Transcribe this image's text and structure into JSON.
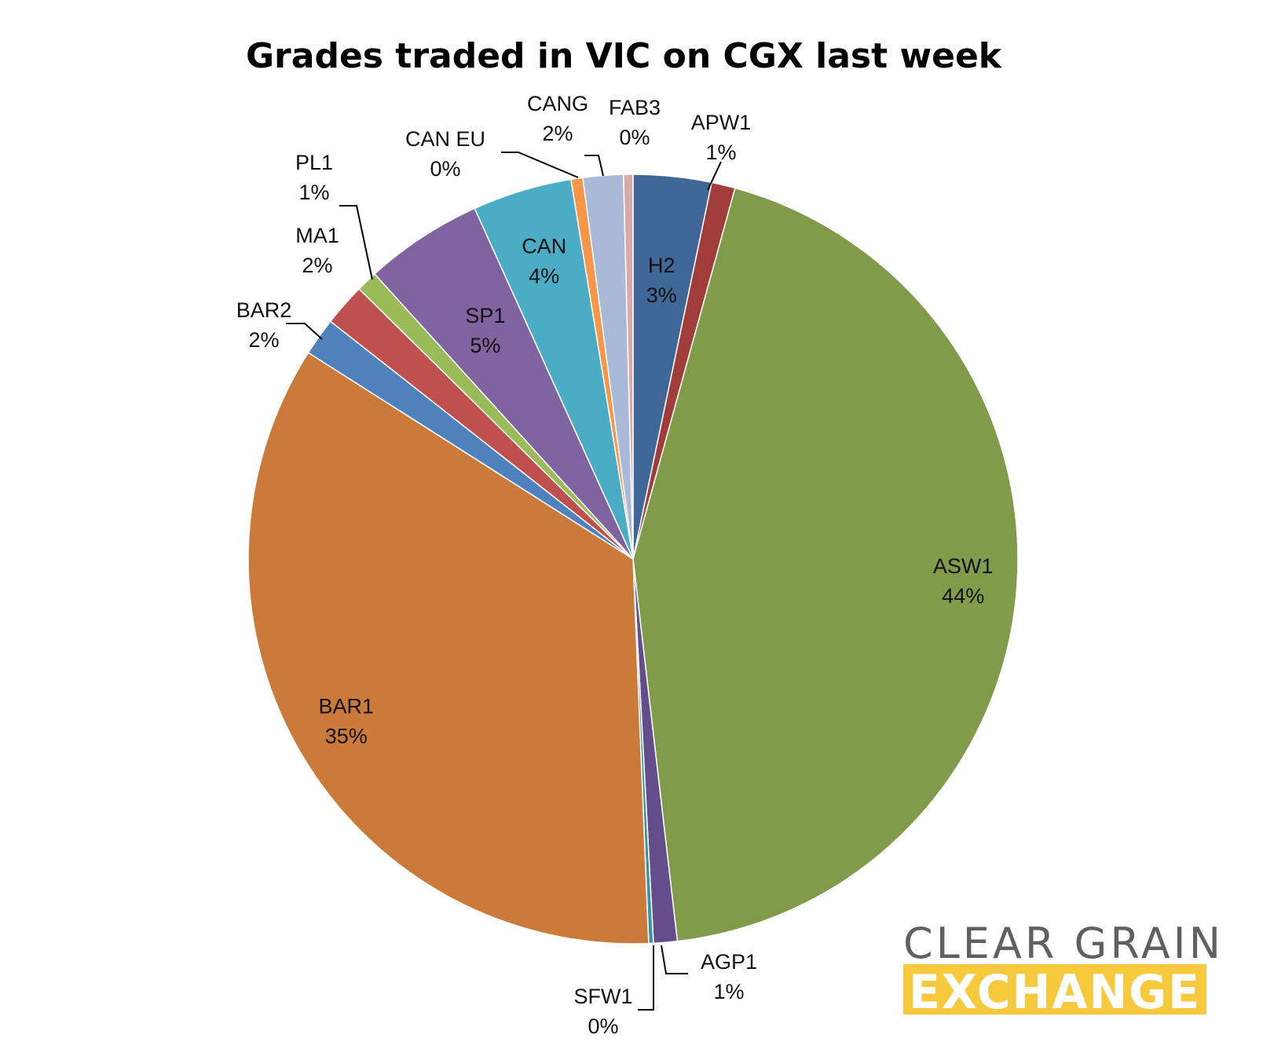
{
  "chart_data": {
    "type": "pie",
    "title": "Grades traded in VIC on CGX last week",
    "start_angle_deg": 0,
    "direction": "clockwise",
    "slices": [
      {
        "name": "H2",
        "label": "H2",
        "pct_label": "3%",
        "value": 3.3,
        "color": "#3f6797"
      },
      {
        "name": "APW1",
        "label": "APW1",
        "pct_label": "1%",
        "value": 1.0,
        "color": "#a03d3a"
      },
      {
        "name": "ASW1",
        "label": "ASW1",
        "pct_label": "44%",
        "value": 44.2,
        "color": "#809b4a"
      },
      {
        "name": "AGP1",
        "label": "AGP1",
        "pct_label": "1%",
        "value": 1.0,
        "color": "#634d8a"
      },
      {
        "name": "SFW1",
        "label": "SFW1",
        "pct_label": "0%",
        "value": 0.2,
        "color": "#3a94a8"
      },
      {
        "name": "BAR1",
        "label": "BAR1",
        "pct_label": "35%",
        "value": 34.9,
        "color": "#cc7a3a"
      },
      {
        "name": "BAR2",
        "label": "BAR2",
        "pct_label": "2%",
        "value": 1.6,
        "color": "#4f81bd"
      },
      {
        "name": "MA1",
        "label": "MA1",
        "pct_label": "2%",
        "value": 1.8,
        "color": "#c0504d"
      },
      {
        "name": "PL1",
        "label": "PL1",
        "pct_label": "1%",
        "value": 0.9,
        "color": "#9bbb59"
      },
      {
        "name": "SP1",
        "label": "SP1",
        "pct_label": "5%",
        "value": 5.0,
        "color": "#8064a2"
      },
      {
        "name": "CAN",
        "label": "CAN",
        "pct_label": "4%",
        "value": 4.2,
        "color": "#4bacc6"
      },
      {
        "name": "CAN EU",
        "label": "CAN EU",
        "pct_label": "0%",
        "value": 0.5,
        "color": "#f79646"
      },
      {
        "name": "CANG",
        "label": "CANG",
        "pct_label": "2%",
        "value": 1.7,
        "color": "#aab9d7"
      },
      {
        "name": "FAB3",
        "label": "FAB3",
        "pct_label": "0%",
        "value": 0.4,
        "color": "#d9a9a8"
      }
    ]
  },
  "logo": {
    "line1": "CLEAR GRAIN",
    "line2": "EXCHANGE",
    "text_color": "#5f6062",
    "band_color": "#f7c93d"
  }
}
